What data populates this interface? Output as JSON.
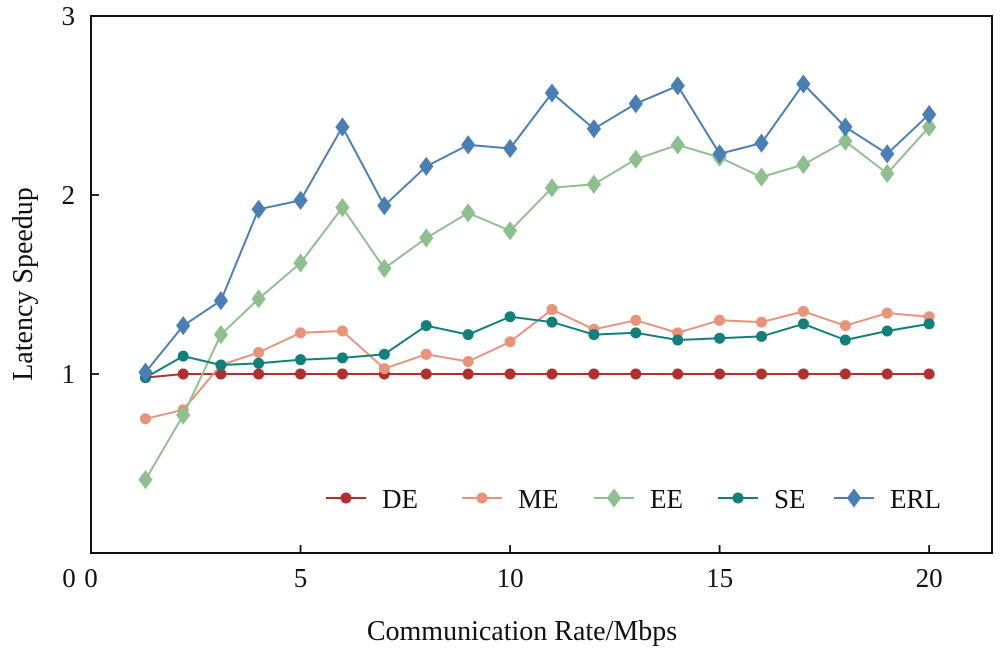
{
  "chart_data": {
    "type": "line",
    "title": "",
    "xlabel": "Communication Rate/Mbps",
    "ylabel": "Latency Speedup",
    "xlim": [
      0,
      21.5
    ],
    "ylim": [
      0,
      3
    ],
    "x_ticks": [
      0,
      5,
      10,
      15,
      20
    ],
    "y_ticks": [
      1,
      2,
      3
    ],
    "grid": false,
    "legend_position": "bottom-right",
    "x": [
      1.3,
      2.2,
      3.1,
      4.0,
      5.0,
      6.0,
      7.0,
      8.0,
      9.0,
      10.0,
      11.0,
      12.0,
      13.0,
      14.0,
      15.0,
      16.0,
      17.0,
      18.0,
      19.0,
      20.0
    ],
    "series": [
      {
        "name": "DE",
        "color": "#b03030",
        "marker": "circle",
        "values": [
          0.98,
          1.0,
          1.0,
          1.0,
          1.0,
          1.0,
          1.0,
          1.0,
          1.0,
          1.0,
          1.0,
          1.0,
          1.0,
          1.0,
          1.0,
          1.0,
          1.0,
          1.0,
          1.0,
          1.0
        ]
      },
      {
        "name": "ME",
        "color": "#e8937a",
        "marker": "circle",
        "values": [
          0.75,
          0.8,
          1.05,
          1.12,
          1.23,
          1.24,
          1.03,
          1.11,
          1.07,
          1.18,
          1.36,
          1.25,
          1.3,
          1.23,
          1.3,
          1.29,
          1.35,
          1.27,
          1.34,
          1.32
        ]
      },
      {
        "name": "EE",
        "color": "#8fbf8f",
        "marker": "diamond",
        "values": [
          0.41,
          0.77,
          1.22,
          1.42,
          1.62,
          1.93,
          1.59,
          1.76,
          1.9,
          1.8,
          2.04,
          2.06,
          2.2,
          2.28,
          2.21,
          2.1,
          2.17,
          2.3,
          2.12,
          2.38
        ]
      },
      {
        "name": "SE",
        "color": "#11807a",
        "marker": "circle",
        "values": [
          0.98,
          1.1,
          1.05,
          1.06,
          1.08,
          1.09,
          1.11,
          1.27,
          1.22,
          1.32,
          1.29,
          1.22,
          1.23,
          1.19,
          1.2,
          1.21,
          1.28,
          1.19,
          1.24,
          1.28
        ]
      },
      {
        "name": "ERL",
        "color": "#4a7fb5",
        "marker": "diamond",
        "values": [
          1.01,
          1.27,
          1.41,
          1.92,
          1.97,
          2.38,
          1.94,
          2.16,
          2.28,
          2.26,
          2.57,
          2.37,
          2.51,
          2.61,
          2.23,
          2.29,
          2.62,
          2.38,
          2.23,
          2.45
        ]
      }
    ]
  }
}
